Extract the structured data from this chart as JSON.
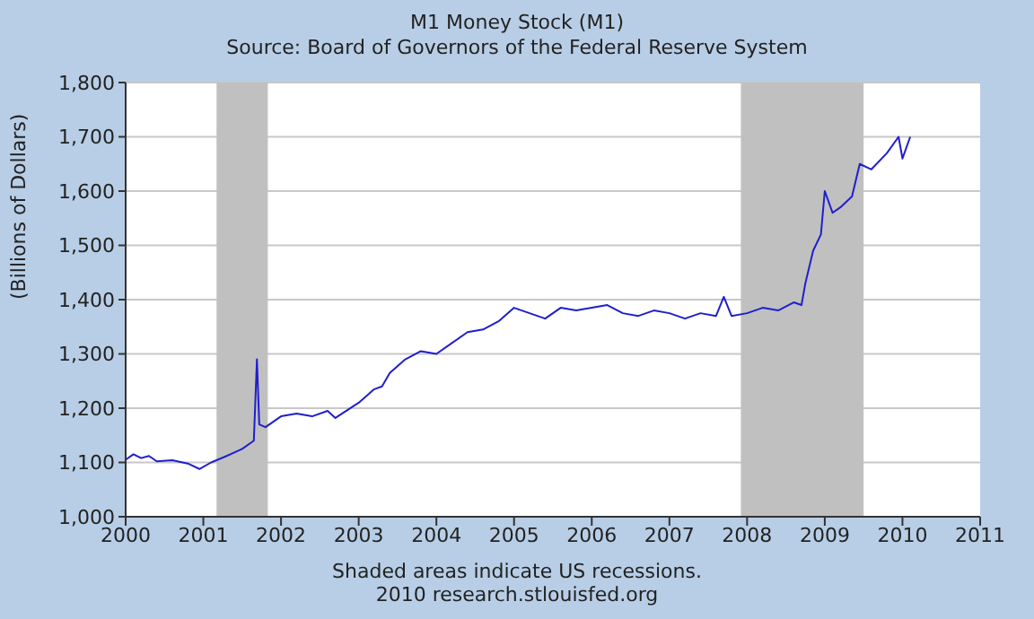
{
  "chart_data": {
    "type": "line",
    "title": "M1 Money Stock (M1)",
    "subtitle": "Source: Board of Governors of the Federal Reserve System",
    "ylabel": "(Billions of Dollars)",
    "annotations": [
      "Shaded areas indicate US recessions.",
      "2010 research.stlouisfed.org"
    ],
    "x": [
      2000.0,
      2000.1,
      2000.2,
      2000.3,
      2000.4,
      2000.6,
      2000.8,
      2000.95,
      2001.1,
      2001.3,
      2001.5,
      2001.65,
      2001.69,
      2001.72,
      2001.8,
      2002.0,
      2002.2,
      2002.4,
      2002.6,
      2002.7,
      2003.0,
      2003.2,
      2003.3,
      2003.4,
      2003.6,
      2003.8,
      2004.0,
      2004.2,
      2004.4,
      2004.6,
      2004.8,
      2005.0,
      2005.2,
      2005.4,
      2005.6,
      2005.8,
      2006.0,
      2006.2,
      2006.4,
      2006.6,
      2006.8,
      2007.0,
      2007.2,
      2007.4,
      2007.6,
      2007.7,
      2007.8,
      2008.0,
      2008.2,
      2008.4,
      2008.6,
      2008.7,
      2008.75,
      2008.85,
      2008.95,
      2009.0,
      2009.1,
      2009.2,
      2009.35,
      2009.45,
      2009.6,
      2009.8,
      2009.95,
      2010.0,
      2010.1
    ],
    "series": [
      {
        "color": "#1f1fcc",
        "values": [
          1105,
          1115,
          1108,
          1112,
          1102,
          1104,
          1098,
          1088,
          1100,
          1112,
          1125,
          1140,
          1290,
          1170,
          1165,
          1185,
          1190,
          1185,
          1195,
          1182,
          1210,
          1235,
          1240,
          1265,
          1290,
          1305,
          1300,
          1320,
          1340,
          1345,
          1360,
          1385,
          1375,
          1365,
          1385,
          1380,
          1385,
          1390,
          1375,
          1370,
          1380,
          1375,
          1365,
          1375,
          1370,
          1405,
          1370,
          1375,
          1385,
          1380,
          1395,
          1390,
          1430,
          1490,
          1520,
          1600,
          1560,
          1570,
          1590,
          1650,
          1640,
          1670,
          1700,
          1660,
          1700
        ]
      }
    ],
    "bands": [
      {
        "axis": "x",
        "from": 2001.17,
        "to": 2001.83,
        "color": "#c0c0c0"
      },
      {
        "axis": "x",
        "from": 2007.92,
        "to": 2009.5,
        "color": "#c0c0c0"
      }
    ],
    "xlim": [
      2000,
      2011
    ],
    "xticks": [
      2000,
      2001,
      2002,
      2003,
      2004,
      2005,
      2006,
      2007,
      2008,
      2009,
      2010,
      2011
    ],
    "ylim": [
      1000,
      1800
    ],
    "yticks": [
      {
        "value": 1000,
        "label": "1,000"
      },
      {
        "value": 1100,
        "label": "1,100"
      },
      {
        "value": 1200,
        "label": "1,200"
      },
      {
        "value": 1300,
        "label": "1,300"
      },
      {
        "value": 1400,
        "label": "1,400"
      },
      {
        "value": 1500,
        "label": "1,500"
      },
      {
        "value": 1600,
        "label": "1,600"
      },
      {
        "value": 1700,
        "label": "1,700"
      },
      {
        "value": 1800,
        "label": "1,800"
      }
    ],
    "grid": "y",
    "legend": false,
    "marker": "none",
    "line_style": "solid"
  }
}
